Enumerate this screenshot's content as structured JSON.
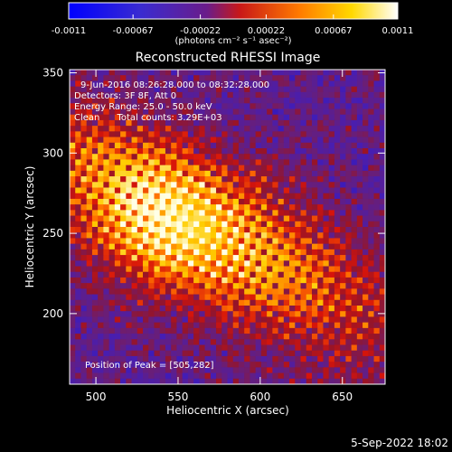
{
  "colorbar": {
    "ticks": [
      "-0.0011",
      "-0.00067",
      "-0.00022",
      "0.00022",
      "0.00067",
      "0.0011"
    ],
    "tick_values": [
      -0.0011,
      -0.00067,
      -0.00022,
      0.00022,
      0.00067,
      0.0011
    ],
    "range": [
      -0.0011,
      0.0011
    ],
    "unit_label": "(photons cm⁻² s⁻¹ asec⁻²)",
    "colormap": "blue-purple-red-orange-yellow-white"
  },
  "chart_data": {
    "type": "heatmap",
    "title": "Reconstructed RHESSI Image",
    "xlabel": "Heliocentric X (arcsec)",
    "ylabel": "Heliocentric Y (arcsec)",
    "xlim": [
      484,
      676
    ],
    "ylim": [
      156,
      352
    ],
    "xticks": [
      500,
      550,
      600,
      650
    ],
    "yticks": [
      200,
      250,
      300,
      350
    ],
    "peak": [
      505,
      282
    ],
    "annotations": [
      "9-Jun-2016 08:26:28.000 to 08:32:28.000",
      "Detectors: 3F 8F, Att 0",
      "Energy Range: 25.0 - 50.0 keV",
      "Clean      Total counts: 3.29E+03"
    ],
    "peak_label": "Position of Peak = [505,282]",
    "grid": false
  },
  "footer": {
    "timestamp": "5-Sep-2022 18:02"
  }
}
